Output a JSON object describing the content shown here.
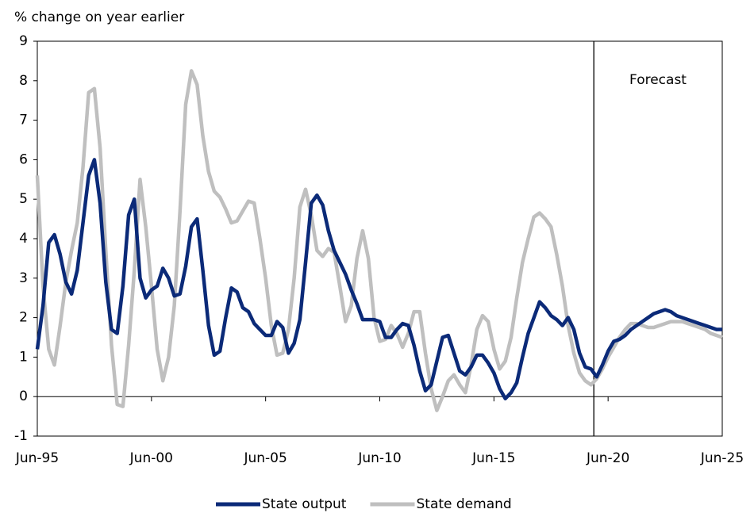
{
  "chart_data": {
    "type": "line",
    "y_axis_title": "% change on year earlier",
    "annotation": "Forecast",
    "forecast_line": 2019.875,
    "x": [
      1995.5,
      1995.75,
      1996,
      1996.25,
      1996.5,
      1996.75,
      1997,
      1997.25,
      1997.5,
      1997.75,
      1998,
      1998.25,
      1998.5,
      1998.75,
      1999,
      1999.25,
      1999.5,
      1999.75,
      2000,
      2000.25,
      2000.5,
      2000.75,
      2001,
      2001.25,
      2001.5,
      2001.75,
      2002,
      2002.25,
      2002.5,
      2002.75,
      2003,
      2003.25,
      2003.5,
      2003.75,
      2004,
      2004.25,
      2004.5,
      2004.75,
      2005,
      2005.25,
      2005.5,
      2005.75,
      2006,
      2006.25,
      2006.5,
      2006.75,
      2007,
      2007.25,
      2007.5,
      2007.75,
      2008,
      2008.25,
      2008.5,
      2008.75,
      2009,
      2009.25,
      2009.5,
      2009.75,
      2010,
      2010.25,
      2010.5,
      2010.75,
      2011,
      2011.25,
      2011.5,
      2011.75,
      2012,
      2012.25,
      2012.5,
      2012.75,
      2013,
      2013.25,
      2013.5,
      2013.75,
      2014,
      2014.25,
      2014.5,
      2014.75,
      2015,
      2015.25,
      2015.5,
      2015.75,
      2016,
      2016.25,
      2016.5,
      2016.75,
      2017,
      2017.25,
      2017.5,
      2017.75,
      2018,
      2018.25,
      2018.5,
      2018.75,
      2019,
      2019.25,
      2019.5,
      2019.75,
      2020,
      2020.25,
      2020.5,
      2020.75,
      2021,
      2021.25,
      2021.5,
      2021.75,
      2022,
      2022.25,
      2022.5,
      2022.75,
      2023,
      2023.25,
      2023.5,
      2023.75,
      2024,
      2024.25,
      2024.5,
      2024.75,
      2025,
      2025.25,
      2025.5
    ],
    "series": [
      {
        "name": "State output",
        "color": "#0b2a78",
        "values": [
          1.2,
          2.3,
          3.9,
          4.1,
          3.6,
          2.9,
          2.6,
          3.2,
          4.4,
          5.6,
          6.0,
          4.9,
          2.9,
          1.7,
          1.6,
          2.8,
          4.6,
          5.0,
          3.0,
          2.5,
          2.7,
          2.8,
          3.25,
          3.0,
          2.55,
          2.6,
          3.3,
          4.3,
          4.5,
          3.2,
          1.8,
          1.05,
          1.15,
          2.0,
          2.75,
          2.65,
          2.25,
          2.15,
          1.85,
          1.7,
          1.55,
          1.55,
          1.9,
          1.75,
          1.1,
          1.35,
          1.95,
          3.4,
          4.9,
          5.1,
          4.85,
          4.2,
          3.7,
          3.4,
          3.1,
          2.7,
          2.35,
          1.95,
          1.95,
          1.95,
          1.9,
          1.5,
          1.5,
          1.7,
          1.85,
          1.8,
          1.3,
          0.65,
          0.15,
          0.3,
          0.9,
          1.5,
          1.55,
          1.1,
          0.65,
          0.55,
          0.75,
          1.05,
          1.05,
          0.85,
          0.6,
          0.2,
          -0.05,
          0.1,
          0.35,
          1.0,
          1.6,
          2.0,
          2.4,
          2.25,
          2.05,
          1.95,
          1.8,
          2.0,
          1.7,
          1.1,
          0.75,
          0.7,
          0.5,
          0.8,
          1.15,
          1.4,
          1.45,
          1.55,
          1.7,
          1.8,
          1.9,
          2.0,
          2.1,
          2.15,
          2.2,
          2.15,
          2.05,
          2.0,
          1.95,
          1.9,
          1.85,
          1.8,
          1.75,
          1.7,
          1.7
        ]
      },
      {
        "name": "State demand",
        "color": "#bfbfbf",
        "values": [
          5.6,
          2.8,
          1.2,
          0.8,
          1.8,
          2.9,
          3.7,
          4.4,
          5.8,
          7.7,
          7.8,
          6.3,
          3.7,
          1.3,
          -0.2,
          -0.25,
          1.3,
          3.2,
          5.5,
          4.3,
          2.8,
          1.2,
          0.4,
          1.0,
          2.3,
          4.7,
          7.4,
          8.25,
          7.9,
          6.6,
          5.7,
          5.2,
          5.05,
          4.75,
          4.4,
          4.45,
          4.7,
          4.95,
          4.9,
          4.0,
          3.0,
          1.8,
          1.05,
          1.1,
          1.7,
          3.0,
          4.8,
          5.25,
          4.6,
          3.7,
          3.55,
          3.75,
          3.65,
          2.8,
          1.9,
          2.3,
          3.5,
          4.2,
          3.5,
          2.0,
          1.4,
          1.45,
          1.8,
          1.6,
          1.25,
          1.6,
          2.15,
          2.15,
          1.1,
          0.2,
          -0.35,
          0.0,
          0.4,
          0.55,
          0.3,
          0.1,
          0.8,
          1.7,
          2.05,
          1.9,
          1.2,
          0.7,
          0.9,
          1.5,
          2.5,
          3.4,
          4.0,
          4.55,
          4.65,
          4.5,
          4.3,
          3.6,
          2.8,
          1.8,
          1.1,
          0.6,
          0.4,
          0.3,
          0.45,
          0.7,
          1.0,
          1.25,
          1.5,
          1.7,
          1.85,
          1.85,
          1.8,
          1.75,
          1.75,
          1.8,
          1.85,
          1.9,
          1.9,
          1.9,
          1.85,
          1.8,
          1.75,
          1.7,
          1.6,
          1.55,
          1.5
        ]
      }
    ],
    "xlim": [
      1995.5,
      2025.5
    ],
    "xticks": [
      {
        "value": 1995.5,
        "label": "Jun-95"
      },
      {
        "value": 2000.5,
        "label": "Jun-00"
      },
      {
        "value": 2005.5,
        "label": "Jun-05"
      },
      {
        "value": 2010.5,
        "label": "Jun-10"
      },
      {
        "value": 2015.5,
        "label": "Jun-15"
      },
      {
        "value": 2020.5,
        "label": "Jun-20"
      },
      {
        "value": 2025.5,
        "label": "Jun-25"
      }
    ],
    "ylim": [
      -1,
      9
    ],
    "yticks": [
      -1,
      0,
      1,
      2,
      3,
      4,
      5,
      6,
      7,
      8,
      9
    ],
    "legend": "bottom"
  }
}
